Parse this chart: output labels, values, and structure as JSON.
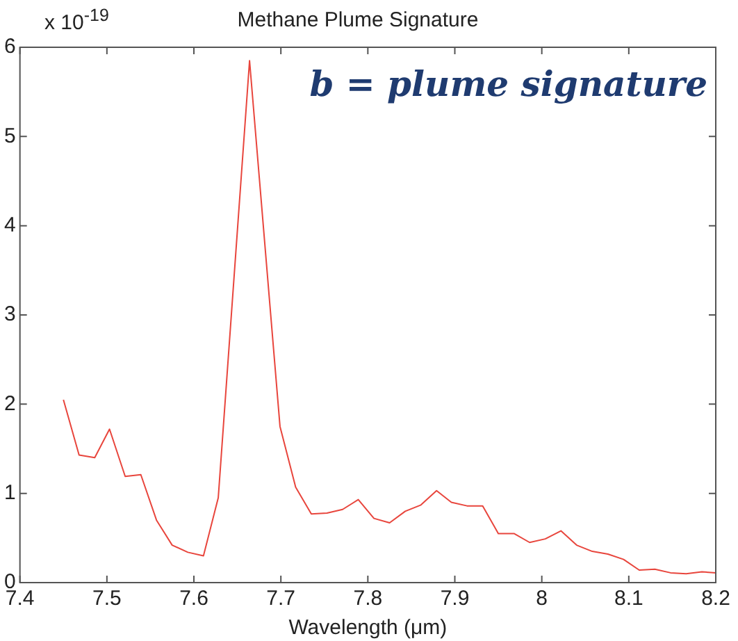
{
  "chart_data": {
    "type": "line",
    "title": "Methane Plume Signature",
    "xlabel": "Wavelength (μm)",
    "annotations": [
      "x 10$^{-19}$",
      "b = plume signature"
    ],
    "series": [
      {
        "color": "#e8453c",
        "x": [
          7.45,
          7.468,
          7.486,
          7.503,
          7.521,
          7.539,
          7.557,
          7.575,
          7.593,
          7.611,
          7.628,
          7.664,
          7.699,
          7.717,
          7.735,
          7.753,
          7.771,
          7.789,
          7.807,
          7.825,
          7.843,
          7.861,
          7.879,
          7.896,
          7.914,
          7.932,
          7.95,
          7.968,
          7.986,
          8.004,
          8.022,
          8.04,
          8.058,
          8.076,
          8.094,
          8.112,
          8.13,
          8.148,
          8.166,
          8.184,
          8.2
        ],
        "values": [
          2.05,
          1.43,
          1.4,
          1.72,
          1.19,
          1.21,
          0.7,
          0.42,
          0.34,
          0.3,
          0.95,
          5.85,
          1.75,
          1.07,
          0.77,
          0.78,
          0.82,
          0.93,
          0.72,
          0.67,
          0.8,
          0.87,
          1.03,
          0.9,
          0.86,
          0.86,
          0.55,
          0.55,
          0.45,
          0.49,
          0.58,
          0.42,
          0.35,
          0.32,
          0.26,
          0.14,
          0.15,
          0.11,
          0.1,
          0.12,
          0.11
        ]
      }
    ],
    "xlim": [
      7.4,
      8.2
    ],
    "xticks": [
      7.4,
      7.5,
      7.6,
      7.7,
      7.8,
      7.9,
      8,
      8.1,
      8.2
    ],
    "ylim": [
      0,
      6
    ],
    "yticks": [
      0,
      1,
      2,
      3,
      4,
      5,
      6
    ],
    "grid": false,
    "legend": false,
    "marker": "none",
    "line_style": "solid"
  }
}
